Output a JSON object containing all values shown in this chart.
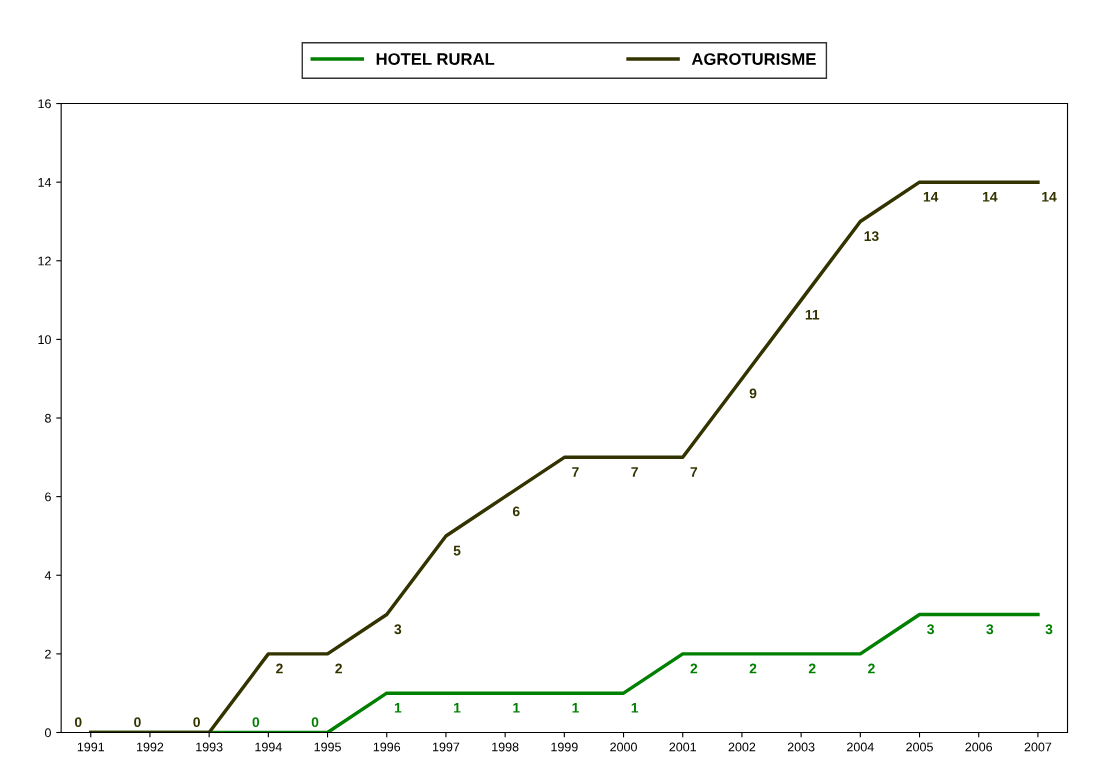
{
  "chart_data": {
    "type": "line",
    "categories": [
      "1991",
      "1992",
      "1993",
      "1994",
      "1995",
      "1996",
      "1997",
      "1998",
      "1999",
      "2000",
      "2001",
      "2002",
      "2003",
      "2004",
      "2005",
      "2006",
      "2007"
    ],
    "series": [
      {
        "name": "HOTEL RURAL",
        "color": "#008000",
        "values": [
          0,
          0,
          0,
          0,
          0,
          1,
          1,
          1,
          1,
          1,
          2,
          2,
          2,
          2,
          3,
          3,
          3
        ],
        "value_labels": [
          null,
          null,
          null,
          "0",
          "0",
          "1",
          "1",
          "1",
          "1",
          "1",
          "2",
          "2",
          "2",
          "2",
          "3",
          "3",
          "3"
        ]
      },
      {
        "name": "AGROTURISME",
        "color": "#333300",
        "values": [
          0,
          0,
          0,
          2,
          2,
          3,
          5,
          6,
          7,
          7,
          7,
          9,
          11,
          13,
          14,
          14,
          14
        ]
      }
    ],
    "ylim": [
      0,
      16
    ],
    "yticks": [
      0,
      2,
      4,
      6,
      8,
      10,
      12,
      14,
      16
    ],
    "grid": false,
    "legend": "top",
    "marker": "none",
    "line_style": "solid",
    "data_labels": true
  }
}
